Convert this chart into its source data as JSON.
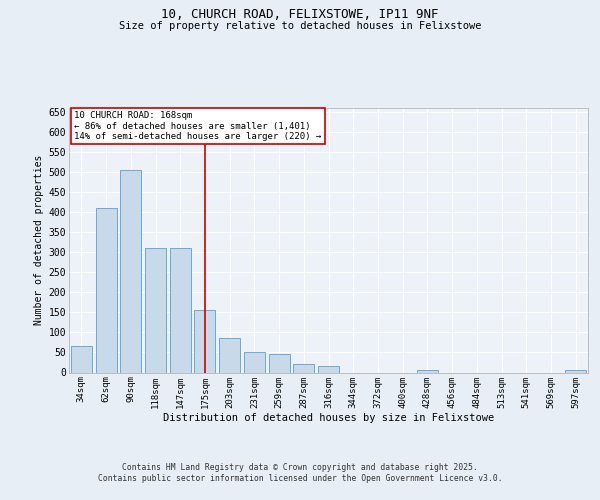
{
  "title_line1": "10, CHURCH ROAD, FELIXSTOWE, IP11 9NF",
  "title_line2": "Size of property relative to detached houses in Felixstowe",
  "xlabel": "Distribution of detached houses by size in Felixstowe",
  "ylabel": "Number of detached properties",
  "bins": [
    "34sqm",
    "62sqm",
    "90sqm",
    "118sqm",
    "147sqm",
    "175sqm",
    "203sqm",
    "231sqm",
    "259sqm",
    "287sqm",
    "316sqm",
    "344sqm",
    "372sqm",
    "400sqm",
    "428sqm",
    "456sqm",
    "484sqm",
    "513sqm",
    "541sqm",
    "569sqm",
    "597sqm"
  ],
  "values": [
    65,
    410,
    505,
    310,
    310,
    155,
    85,
    50,
    45,
    20,
    15,
    0,
    0,
    0,
    5,
    0,
    0,
    0,
    0,
    0,
    5
  ],
  "bar_color": "#c8d9ea",
  "bar_edge_color": "#5a9fd4",
  "vline_x_index": 5,
  "vline_color": "#cc0000",
  "annotation_text": "10 CHURCH ROAD: 168sqm\n← 86% of detached houses are smaller (1,401)\n14% of semi-detached houses are larger (220) →",
  "annotation_box_color": "#cc0000",
  "ylim": [
    0,
    660
  ],
  "yticks": [
    0,
    50,
    100,
    150,
    200,
    250,
    300,
    350,
    400,
    450,
    500,
    550,
    600,
    650
  ],
  "bg_color": "#e8eef5",
  "plot_bg_color": "#edf2f8",
  "grid_color": "#ffffff",
  "footer_line1": "Contains HM Land Registry data © Crown copyright and database right 2025.",
  "footer_line2": "Contains public sector information licensed under the Open Government Licence v3.0."
}
